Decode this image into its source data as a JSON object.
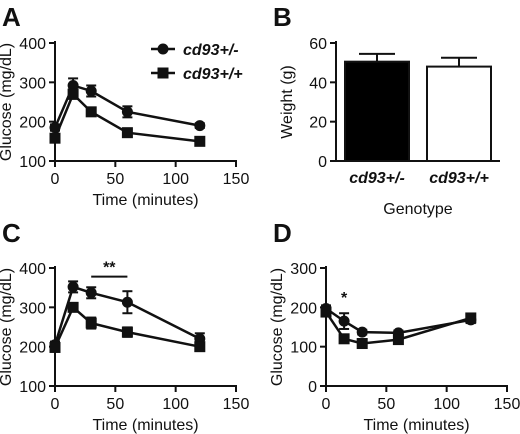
{
  "colors": {
    "ink": "#111111",
    "fill_black": "#000000",
    "fill_white": "#ffffff"
  },
  "chart_data": [
    {
      "panel": "A",
      "type": "line",
      "xlabel": "Time (minutes)",
      "ylabel": "Glucose (mg/dL)",
      "xlim": [
        0,
        150
      ],
      "ylim": [
        100,
        400
      ],
      "xticks": [
        0,
        50,
        100,
        150
      ],
      "yticks": [
        100,
        200,
        300,
        400
      ],
      "legend": "top-right",
      "series": [
        {
          "name": "cd93+/-",
          "marker": "circle",
          "x": [
            0,
            15,
            30,
            60,
            120
          ],
          "y": [
            185,
            292,
            278,
            225,
            190
          ],
          "err": [
            8,
            18,
            14,
            14,
            6
          ]
        },
        {
          "name": "cd93+/+",
          "marker": "square",
          "x": [
            0,
            15,
            30,
            60,
            120
          ],
          "y": [
            158,
            270,
            225,
            172,
            150
          ],
          "err": [
            8,
            12,
            8,
            8,
            5
          ]
        }
      ]
    },
    {
      "panel": "B",
      "type": "bar",
      "xlabel": "Genotype",
      "ylabel": "Weight (g)",
      "ylim": [
        0,
        60
      ],
      "yticks": [
        0,
        20,
        40,
        60
      ],
      "categories": [
        "cd93+/-",
        "cd93+/+"
      ],
      "values": [
        50.5,
        48
      ],
      "err": [
        4,
        4.5
      ],
      "fills": [
        "black",
        "white"
      ]
    },
    {
      "panel": "C",
      "type": "line",
      "xlabel": "Time (minutes)",
      "ylabel": "Glucose (mg/dL)",
      "xlim": [
        0,
        150
      ],
      "ylim": [
        100,
        400
      ],
      "xticks": [
        0,
        50,
        100,
        150
      ],
      "yticks": [
        100,
        200,
        300,
        400
      ],
      "annotation": "**",
      "bracket_x": [
        30,
        60
      ],
      "series": [
        {
          "marker": "circle",
          "x": [
            0,
            15,
            30,
            60,
            120
          ],
          "y": [
            205,
            352,
            337,
            313,
            220
          ],
          "err": [
            8,
            14,
            14,
            28,
            14
          ]
        },
        {
          "marker": "square",
          "x": [
            0,
            15,
            30,
            60,
            120
          ],
          "y": [
            198,
            300,
            260,
            237,
            200
          ],
          "err": [
            8,
            10,
            14,
            12,
            10
          ]
        }
      ]
    },
    {
      "panel": "D",
      "type": "line",
      "xlabel": "Time (minutes)",
      "ylabel": "Glucose (mg/dL)",
      "xlim": [
        0,
        150
      ],
      "ylim": [
        0,
        300
      ],
      "xticks": [
        0,
        50,
        100,
        150
      ],
      "yticks": [
        0,
        100,
        200,
        300
      ],
      "annotation": "*",
      "annotation_x": 15,
      "series": [
        {
          "marker": "circle",
          "x": [
            0,
            15,
            30,
            60,
            120
          ],
          "y": [
            197,
            165,
            137,
            135,
            168
          ],
          "err": [
            8,
            20,
            6,
            6,
            8
          ]
        },
        {
          "marker": "square",
          "x": [
            0,
            15,
            30,
            60,
            120
          ],
          "y": [
            188,
            120,
            108,
            118,
            173
          ],
          "err": [
            8,
            8,
            6,
            6,
            6
          ]
        }
      ]
    }
  ],
  "panel_labels": [
    "A",
    "B",
    "C",
    "D"
  ]
}
